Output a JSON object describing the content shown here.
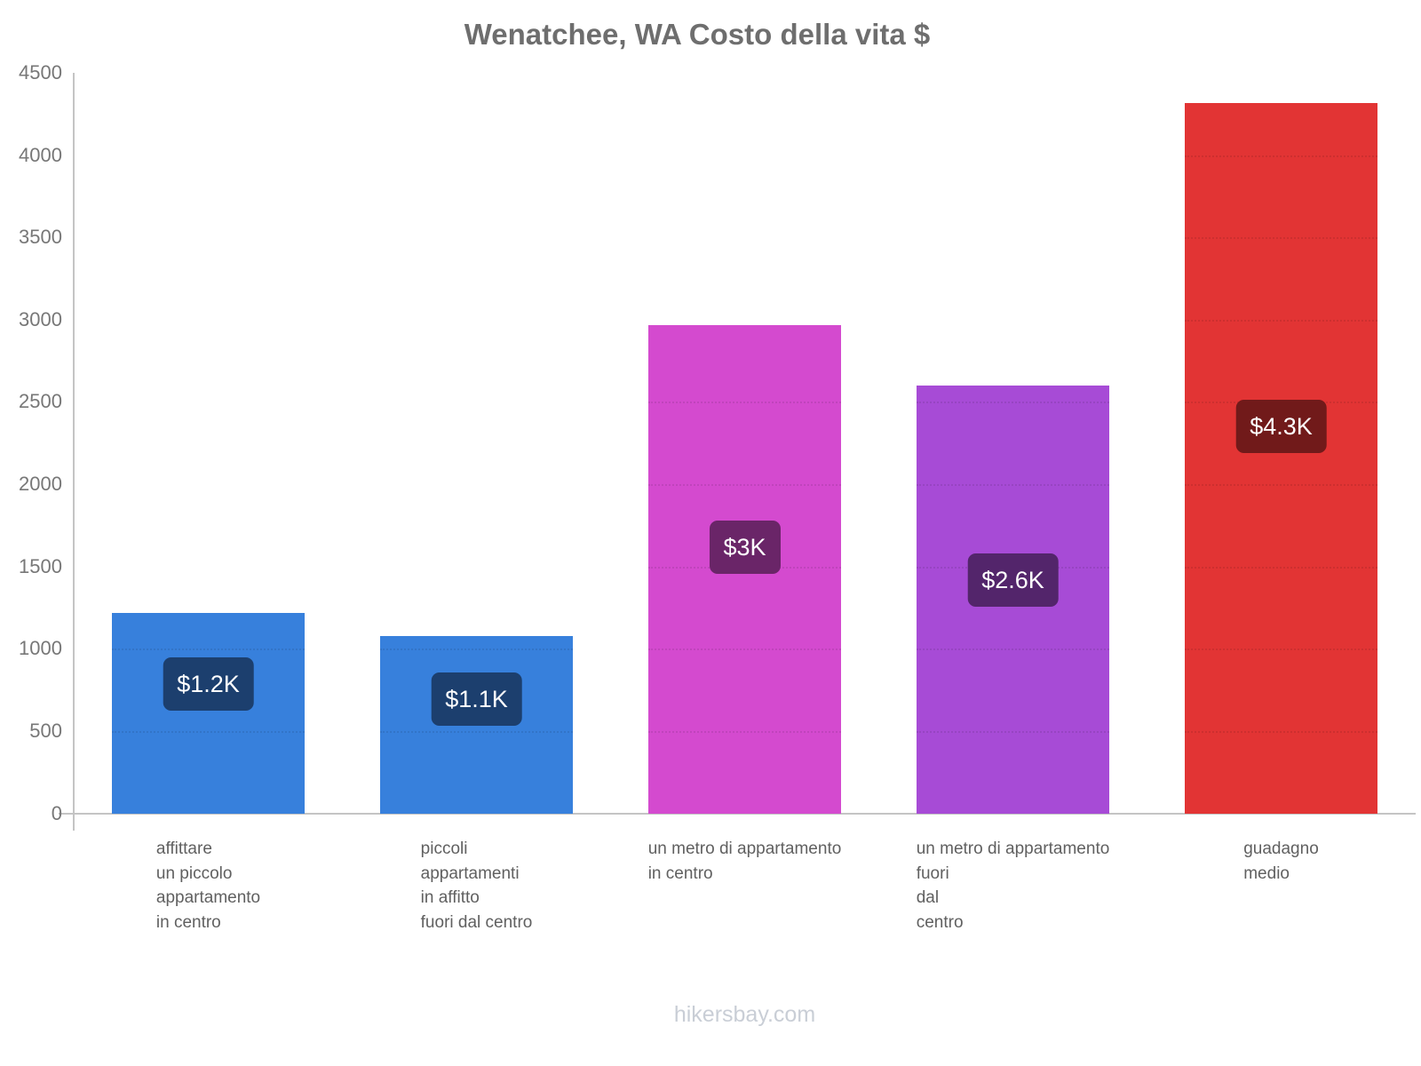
{
  "title": "Wenatchee, WA Costo della vita $",
  "footer_watermark": "hikersbay.com",
  "chart_data": {
    "type": "bar",
    "title": "Wenatchee, WA Costo della vita $",
    "xlabel": "",
    "ylabel": "",
    "ylim": [
      0,
      4500
    ],
    "ytick_interval": 500,
    "yticks": [
      0,
      500,
      1000,
      1500,
      2000,
      2500,
      3000,
      3500,
      4000,
      4500
    ],
    "grid": "faint dotted horizontal gridlines visible inside bars only",
    "legend_position": "none",
    "categories": [
      "affittare\nun piccolo\nappartamento\nin centro",
      "piccoli\nappartamenti\nin affitto\nfuori dal centro",
      "un metro di appartamento\nin centro",
      "un metro di appartamento\nfuori\ndal\ncentro",
      "guadagno\nmedio"
    ],
    "values": [
      1220,
      1080,
      2970,
      2600,
      4320
    ],
    "value_labels": [
      "$1.2K",
      "$1.1K",
      "$3K",
      "$2.6K",
      "$4.3K"
    ],
    "bar_colors": [
      "#3780DC",
      "#3780DC",
      "#D44ACF",
      "#A74BD6",
      "#E23434"
    ],
    "badge_colors": [
      "#1C3F6E",
      "#1C3F6E",
      "#6A2568",
      "#53256B",
      "#711A1A"
    ],
    "style_colors": {
      "title_text": "#6E6E6E",
      "axis_line": "#C4C4C4",
      "tick_text": "#777777",
      "category_text": "#606060",
      "badge_text": "#FFFFFF",
      "watermark_text": "#C9CED6",
      "background": "#FFFFFF"
    }
  }
}
